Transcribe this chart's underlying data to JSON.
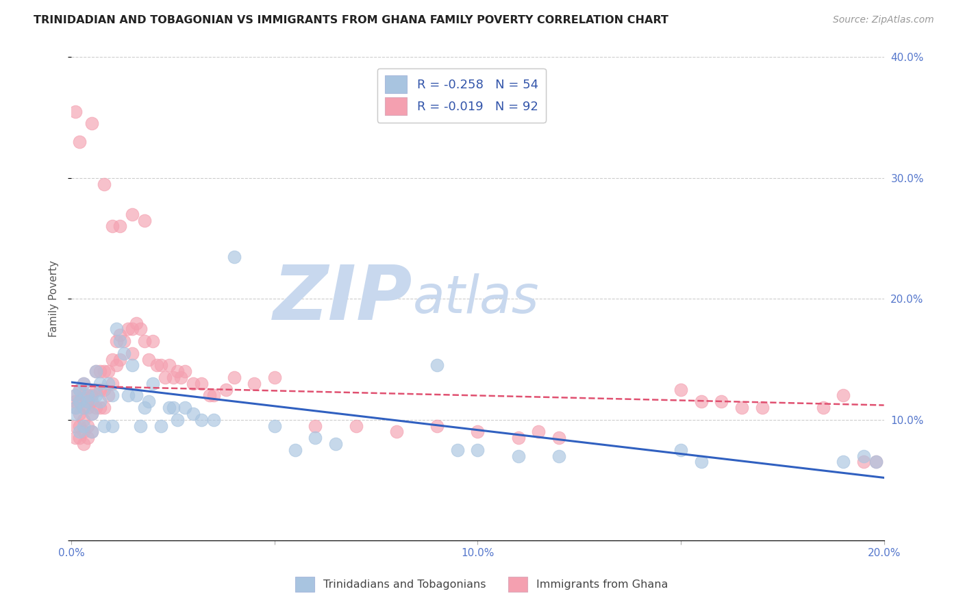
{
  "title": "TRINIDADIAN AND TOBAGONIAN VS IMMIGRANTS FROM GHANA FAMILY POVERTY CORRELATION CHART",
  "source": "Source: ZipAtlas.com",
  "ylabel": "Family Poverty",
  "xlim": [
    0.0,
    0.2
  ],
  "ylim": [
    0.0,
    0.4
  ],
  "legend1_label": "Trinidadians and Tobagonians",
  "legend2_label": "Immigrants from Ghana",
  "r1": -0.258,
  "n1": 54,
  "r2": -0.019,
  "n2": 92,
  "color_blue": "#a8c4e0",
  "color_pink": "#f4a0b0",
  "line_blue": "#3060c0",
  "line_pink": "#e05070",
  "watermark_zip": "ZIP",
  "watermark_atlas": "atlas",
  "watermark_color_zip": "#c8d8ee",
  "watermark_color_atlas": "#c8d8ee",
  "blue_line_x0": 0.0,
  "blue_line_y0": 0.131,
  "blue_line_x1": 0.2,
  "blue_line_y1": 0.052,
  "pink_line_x0": 0.0,
  "pink_line_y0": 0.128,
  "pink_line_x1": 0.2,
  "pink_line_y1": 0.112,
  "blue_x": [
    0.001,
    0.001,
    0.001,
    0.002,
    0.002,
    0.002,
    0.003,
    0.003,
    0.003,
    0.004,
    0.004,
    0.005,
    0.005,
    0.006,
    0.006,
    0.007,
    0.007,
    0.008,
    0.009,
    0.01,
    0.01,
    0.011,
    0.012,
    0.013,
    0.014,
    0.015,
    0.016,
    0.017,
    0.018,
    0.019,
    0.02,
    0.022,
    0.024,
    0.025,
    0.026,
    0.028,
    0.03,
    0.032,
    0.035,
    0.04,
    0.05,
    0.055,
    0.06,
    0.065,
    0.09,
    0.095,
    0.1,
    0.11,
    0.12,
    0.15,
    0.155,
    0.19,
    0.195,
    0.198
  ],
  "blue_y": [
    0.12,
    0.11,
    0.105,
    0.125,
    0.115,
    0.09,
    0.13,
    0.11,
    0.095,
    0.12,
    0.115,
    0.105,
    0.09,
    0.14,
    0.12,
    0.13,
    0.115,
    0.095,
    0.13,
    0.12,
    0.095,
    0.175,
    0.165,
    0.155,
    0.12,
    0.145,
    0.12,
    0.095,
    0.11,
    0.115,
    0.13,
    0.095,
    0.11,
    0.11,
    0.1,
    0.11,
    0.105,
    0.1,
    0.1,
    0.235,
    0.095,
    0.075,
    0.085,
    0.08,
    0.145,
    0.075,
    0.075,
    0.07,
    0.07,
    0.075,
    0.065,
    0.065,
    0.07,
    0.065
  ],
  "pink_x": [
    0.001,
    0.001,
    0.001,
    0.001,
    0.001,
    0.002,
    0.002,
    0.002,
    0.002,
    0.002,
    0.003,
    0.003,
    0.003,
    0.003,
    0.003,
    0.003,
    0.004,
    0.004,
    0.004,
    0.004,
    0.004,
    0.005,
    0.005,
    0.005,
    0.005,
    0.006,
    0.006,
    0.006,
    0.007,
    0.007,
    0.007,
    0.008,
    0.008,
    0.008,
    0.009,
    0.009,
    0.01,
    0.01,
    0.011,
    0.011,
    0.012,
    0.012,
    0.013,
    0.014,
    0.015,
    0.015,
    0.016,
    0.017,
    0.018,
    0.019,
    0.02,
    0.021,
    0.022,
    0.023,
    0.024,
    0.025,
    0.026,
    0.027,
    0.028,
    0.03,
    0.032,
    0.034,
    0.035,
    0.038,
    0.04,
    0.045,
    0.05,
    0.06,
    0.07,
    0.08,
    0.09,
    0.1,
    0.11,
    0.115,
    0.12,
    0.15,
    0.155,
    0.16,
    0.165,
    0.17,
    0.185,
    0.19,
    0.195,
    0.198,
    0.005,
    0.008,
    0.01,
    0.012,
    0.015,
    0.018,
    0.001,
    0.002
  ],
  "pink_y": [
    0.12,
    0.115,
    0.11,
    0.095,
    0.085,
    0.125,
    0.115,
    0.105,
    0.095,
    0.085,
    0.13,
    0.12,
    0.11,
    0.1,
    0.09,
    0.08,
    0.12,
    0.115,
    0.11,
    0.095,
    0.085,
    0.12,
    0.115,
    0.105,
    0.09,
    0.14,
    0.125,
    0.11,
    0.14,
    0.125,
    0.11,
    0.14,
    0.125,
    0.11,
    0.14,
    0.12,
    0.15,
    0.13,
    0.165,
    0.145,
    0.17,
    0.15,
    0.165,
    0.175,
    0.175,
    0.155,
    0.18,
    0.175,
    0.165,
    0.15,
    0.165,
    0.145,
    0.145,
    0.135,
    0.145,
    0.135,
    0.14,
    0.135,
    0.14,
    0.13,
    0.13,
    0.12,
    0.12,
    0.125,
    0.135,
    0.13,
    0.135,
    0.095,
    0.095,
    0.09,
    0.095,
    0.09,
    0.085,
    0.09,
    0.085,
    0.125,
    0.115,
    0.115,
    0.11,
    0.11,
    0.11,
    0.12,
    0.065,
    0.065,
    0.345,
    0.295,
    0.26,
    0.26,
    0.27,
    0.265,
    0.355,
    0.33
  ]
}
